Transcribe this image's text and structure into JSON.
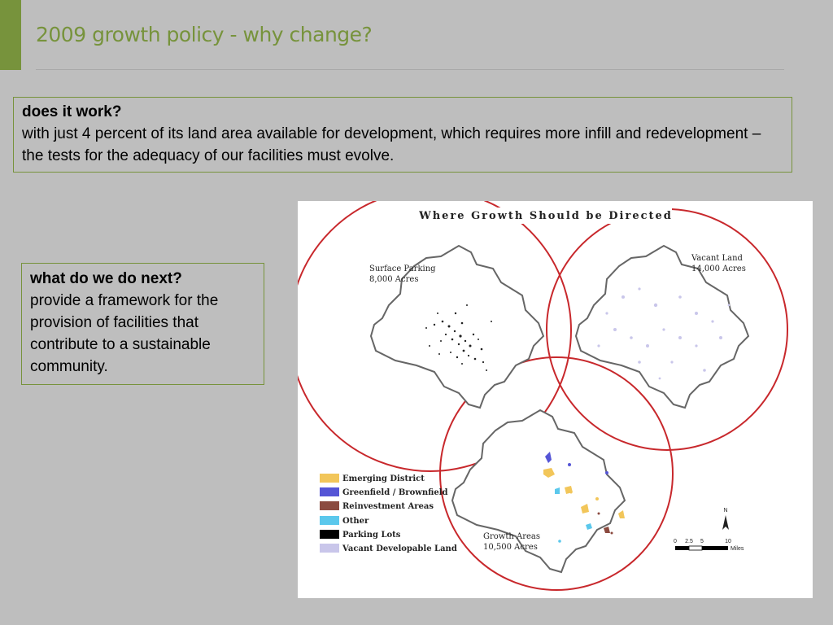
{
  "slide": {
    "title": "2009 growth policy - why change?"
  },
  "box1": {
    "heading": "does it work?",
    "body": "with just 4 percent of its land area available for development, which requires more infill and redevelopment –  the tests for the adequacy of our facilities must evolve."
  },
  "box2": {
    "heading": "what do we do next?",
    "body": "provide a framework for the provision of facilities that contribute to a sustainable community."
  },
  "map": {
    "title": "Where Growth Should be Directed",
    "surface_parking": {
      "name": "Surface Parking",
      "acres": "8,000 Acres"
    },
    "vacant_land": {
      "name": "Vacant Land",
      "acres": "14,000 Acres"
    },
    "growth_areas": {
      "name": "Growth Areas",
      "acres": "10,500 Acres"
    },
    "legend": [
      {
        "label": "Emerging District",
        "color": "#f2c65a"
      },
      {
        "label": "Greenfield / Brownfield",
        "color": "#5555d6"
      },
      {
        "label": "Reinvestment Areas",
        "color": "#8b4a3f"
      },
      {
        "label": "Other",
        "color": "#5bc8ec"
      },
      {
        "label": "Parking Lots",
        "color": "#000000"
      },
      {
        "label": "Vacant Developable Land",
        "color": "#c9c6ea"
      }
    ],
    "north": "N",
    "scale": {
      "ticks": [
        "0",
        "2.5",
        "5",
        "10"
      ],
      "unit": "Miles"
    },
    "colors": {
      "circle": "#c8282c",
      "outline": "#666666"
    }
  }
}
